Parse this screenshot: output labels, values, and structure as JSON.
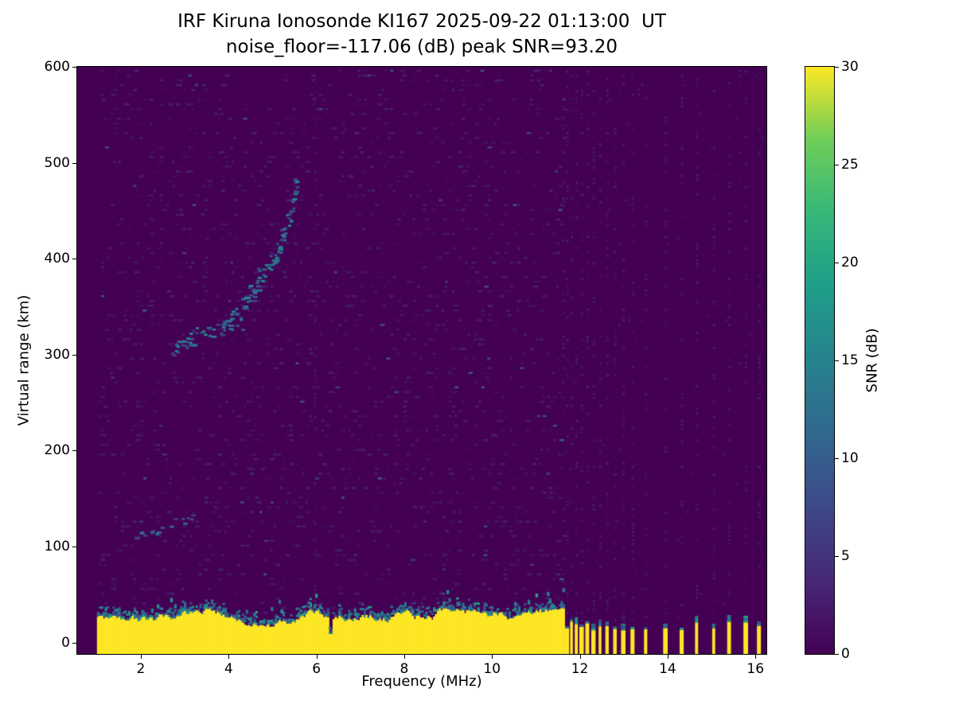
{
  "chart_data": {
    "type": "heatmap",
    "title": "IRF Kiruna Ionosonde KI167 2025-09-22 01:13:00  UT",
    "subtitle": "noise_floor=-117.06 (dB) peak SNR=93.20",
    "station": "IRF Kiruna Ionosonde KI167",
    "timestamp_ut": "2025-09-22 01:13:00",
    "noise_floor_db": -117.06,
    "peak_snr_db": 93.2,
    "xlabel": "Frequency (MHz)",
    "ylabel": "Virtual range (km)",
    "xlim": [
      0.55,
      16.25
    ],
    "ylim": [
      -12,
      600
    ],
    "xticks": [
      2,
      4,
      6,
      8,
      10,
      12,
      14,
      16
    ],
    "yticks": [
      0,
      100,
      200,
      300,
      400,
      500,
      600
    ],
    "grid": false,
    "colorbar": {
      "label": "SNR (dB)",
      "vmin": 0,
      "vmax": 30,
      "ticks": [
        0,
        5,
        10,
        15,
        20,
        25,
        30
      ],
      "colormap": "viridis",
      "stops": [
        [
          0,
          "#440154"
        ],
        [
          0.125,
          "#482878"
        ],
        [
          0.25,
          "#3e4989"
        ],
        [
          0.375,
          "#31688e"
        ],
        [
          0.5,
          "#26828e"
        ],
        [
          0.625,
          "#1f9e89"
        ],
        [
          0.75,
          "#35b779"
        ],
        [
          0.875,
          "#6ece58"
        ],
        [
          1,
          "#fde725"
        ]
      ]
    },
    "features": {
      "freq_start_mhz": 1.0,
      "freq_end_mhz": 16.2,
      "background_snr_db": [
        0,
        4
      ],
      "ground_band": {
        "freq_range_mhz": [
          1.0,
          11.62
        ],
        "range_km": [
          -12,
          28
        ],
        "snr_db": 30
      },
      "ground_band_notches_mhz": [
        6.3
      ],
      "faint_columns_mhz": [
        5.95
      ],
      "interference_stripes_mhz": [
        11.62,
        11.71,
        11.81,
        11.92,
        12.04,
        12.17,
        12.31,
        12.46,
        12.62,
        12.8,
        12.99,
        13.2,
        13.5,
        13.95,
        14.32,
        14.66,
        15.05,
        15.4,
        15.78,
        16.08
      ],
      "f_layer_trace": [
        [
          2.75,
          306
        ],
        [
          2.85,
          310
        ],
        [
          2.95,
          312
        ],
        [
          3.05,
          315
        ],
        [
          3.15,
          318
        ],
        [
          3.3,
          322
        ],
        [
          3.45,
          325
        ],
        [
          3.6,
          327
        ],
        [
          3.75,
          329
        ],
        [
          3.9,
          331
        ],
        [
          4.0,
          334
        ],
        [
          4.1,
          338
        ],
        [
          4.2,
          344
        ],
        [
          4.3,
          352
        ],
        [
          4.4,
          360
        ],
        [
          4.5,
          368
        ],
        [
          4.6,
          376
        ],
        [
          4.7,
          383
        ],
        [
          4.8,
          390
        ],
        [
          4.9,
          396
        ],
        [
          5.0,
          403
        ],
        [
          5.1,
          412
        ],
        [
          5.15,
          420
        ],
        [
          5.2,
          428
        ],
        [
          5.3,
          438
        ],
        [
          5.35,
          448
        ],
        [
          5.4,
          458
        ],
        [
          5.45,
          468
        ],
        [
          5.5,
          478
        ]
      ],
      "e_layer_trace": [
        [
          1.85,
          112
        ],
        [
          1.95,
          113
        ],
        [
          2.05,
          114
        ],
        [
          2.2,
          115
        ],
        [
          2.35,
          117
        ],
        [
          2.5,
          119
        ],
        [
          2.65,
          122
        ],
        [
          2.8,
          126
        ],
        [
          2.95,
          129
        ],
        [
          3.1,
          131
        ]
      ]
    }
  }
}
